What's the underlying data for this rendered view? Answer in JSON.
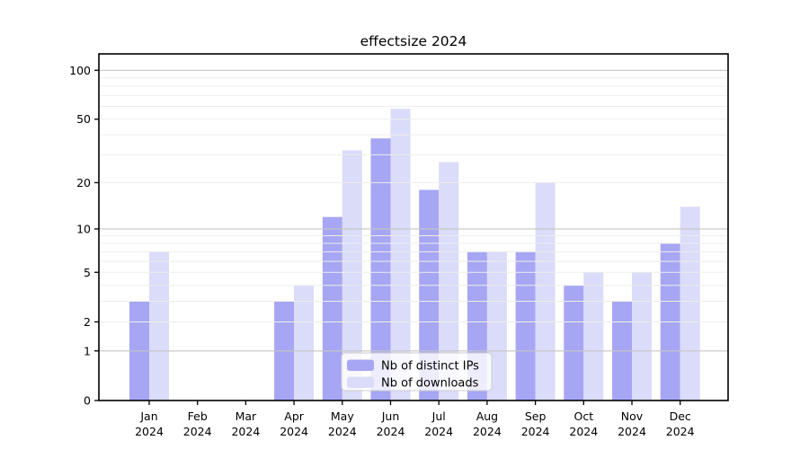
{
  "title": "effectsize 2024",
  "colors": {
    "distinct_ips_bar": "#a6a6f4",
    "downloads_bar": "#dbdbfa",
    "grid_major": "#c6c6c6",
    "grid_minor": "#ededed",
    "axis_frame": "#000000",
    "legend_border": "#cccccc",
    "legend_bg": "#ffffff"
  },
  "chart_data": {
    "type": "bar",
    "title": "effectsize 2024",
    "categories": [
      "Jan",
      "Feb",
      "Mar",
      "Apr",
      "May",
      "Jun",
      "Jul",
      "Aug",
      "Sep",
      "Oct",
      "Nov",
      "Dec"
    ],
    "category_year": "2024",
    "series": [
      {
        "name": "Nb of distinct IPs",
        "color": "#a6a6f4",
        "values": [
          3,
          0,
          0,
          3,
          12,
          38,
          18,
          7,
          7,
          4,
          3,
          8
        ]
      },
      {
        "name": "Nb of downloads",
        "color": "#dbdbfa",
        "values": [
          7,
          0,
          0,
          4,
          32,
          58,
          27,
          7,
          20,
          5,
          5,
          14
        ]
      }
    ],
    "y_scale": "log1p",
    "y_ticks": [
      0,
      1,
      2,
      5,
      10,
      20,
      50,
      100
    ],
    "y_major_gridlines": [
      1,
      10,
      100
    ],
    "y_minor_gridlines": [
      2,
      3,
      4,
      5,
      6,
      7,
      8,
      9,
      20,
      30,
      40,
      50,
      60,
      70,
      80,
      90
    ],
    "ylim": [
      0,
      126
    ],
    "grid": "on",
    "legend_position": "bottom-center",
    "xlabel": "",
    "ylabel": ""
  }
}
